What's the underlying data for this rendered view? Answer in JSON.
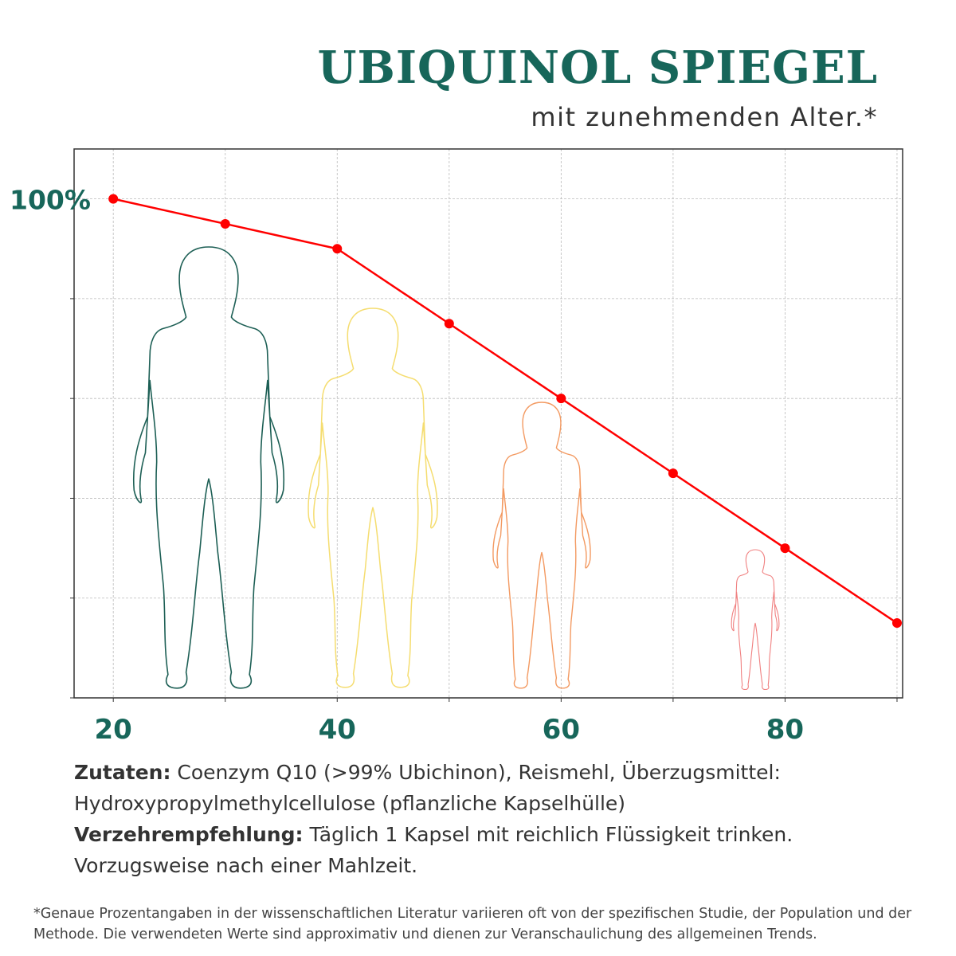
{
  "header": {
    "title": "UBIQUINOL SPIEGEL",
    "subtitle": "mit zunehmenden Alter.*"
  },
  "chart_data": {
    "type": "line",
    "title": "UBIQUINOL SPIEGEL",
    "subtitle": "mit zunehmenden Alter.*",
    "xlabel": "",
    "ylabel": "",
    "x": [
      20,
      30,
      40,
      50,
      60,
      70,
      80,
      90
    ],
    "x_tick_labels": [
      "20",
      "",
      "40",
      "",
      "60",
      "",
      "80",
      ""
    ],
    "y_tick_labels": [
      "100%"
    ],
    "xlim": [
      16.5,
      90.5
    ],
    "ylim": [
      0,
      110
    ],
    "grid": true,
    "series": [
      {
        "values": [
          100,
          95,
          90,
          75,
          60,
          45,
          30,
          15
        ]
      }
    ],
    "colors": {
      "line": "#ff0000",
      "axis_labels": "#17665a",
      "grid": "#bbbbbb",
      "figure_green": "#1d5f55",
      "figure_yellow": "#f5dd70",
      "figure_orange": "#f39a62",
      "figure_pink": "#f08080"
    },
    "illustrations": [
      {
        "icon": "woman-silhouette-icon",
        "color": "#1d5f55"
      },
      {
        "icon": "woman-silhouette-icon",
        "color": "#f5dd70"
      },
      {
        "icon": "girl-silhouette-icon",
        "color": "#f39a62"
      },
      {
        "icon": "child-silhouette-icon",
        "color": "#f08080"
      }
    ]
  },
  "info": {
    "ingredients_label": "Zutaten:",
    "ingredients_text": "Coenzym Q10 (>99% Ubichinon), Reismehl, Überzugsmittel: Hydroxypropylmethylcellulose (pflanzliche Kapselhülle)",
    "recommendation_label": "Verzehrempfehlung:",
    "recommendation_text": "Täglich 1 Kapsel mit reichlich Flüssigkeit trinken. Vorzugsweise nach einer Mahlzeit."
  },
  "footnote": "*Genaue Prozentangaben in der wissenschaftlichen Literatur variieren oft von der spezifischen Studie, der Population und der Methode. Die verwendeten Werte sind approximativ und dienen zur Veranschaulichung des allgemeinen Trends."
}
